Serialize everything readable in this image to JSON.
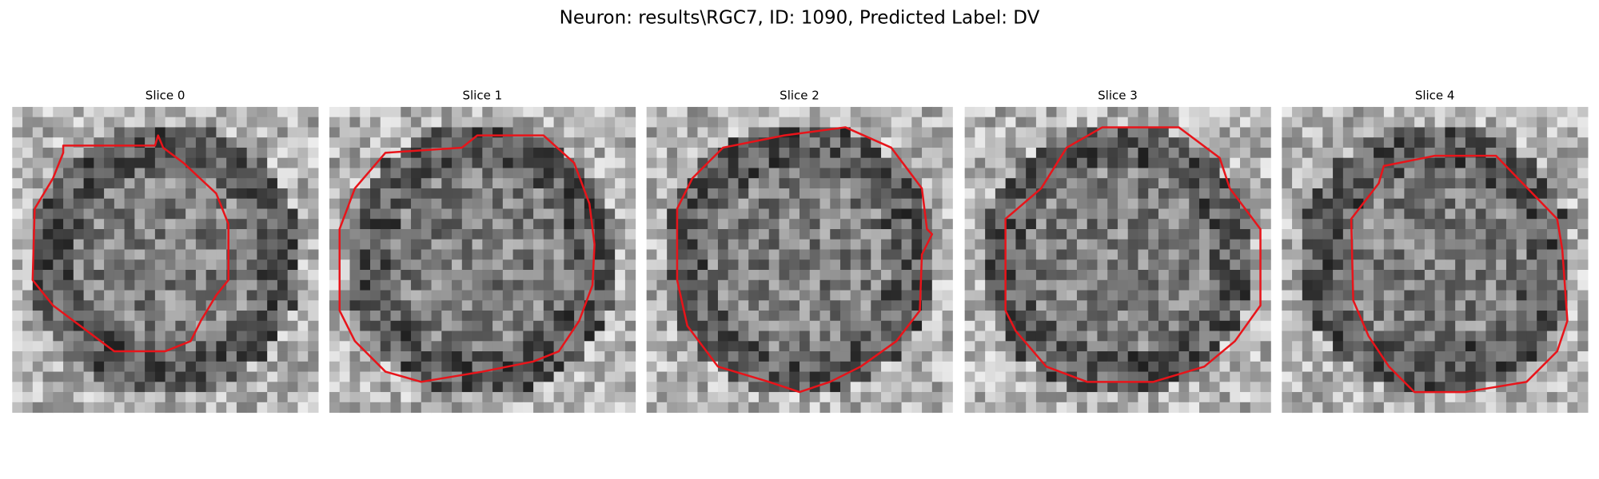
{
  "title": "Neuron: results\\RGC7, ID: 1090, Predicted Label: DV",
  "panels": [
    {
      "title": "Slice 0"
    },
    {
      "title": "Slice 1"
    },
    {
      "title": "Slice 2"
    },
    {
      "title": "Slice 3"
    },
    {
      "title": "Slice 4"
    }
  ]
}
